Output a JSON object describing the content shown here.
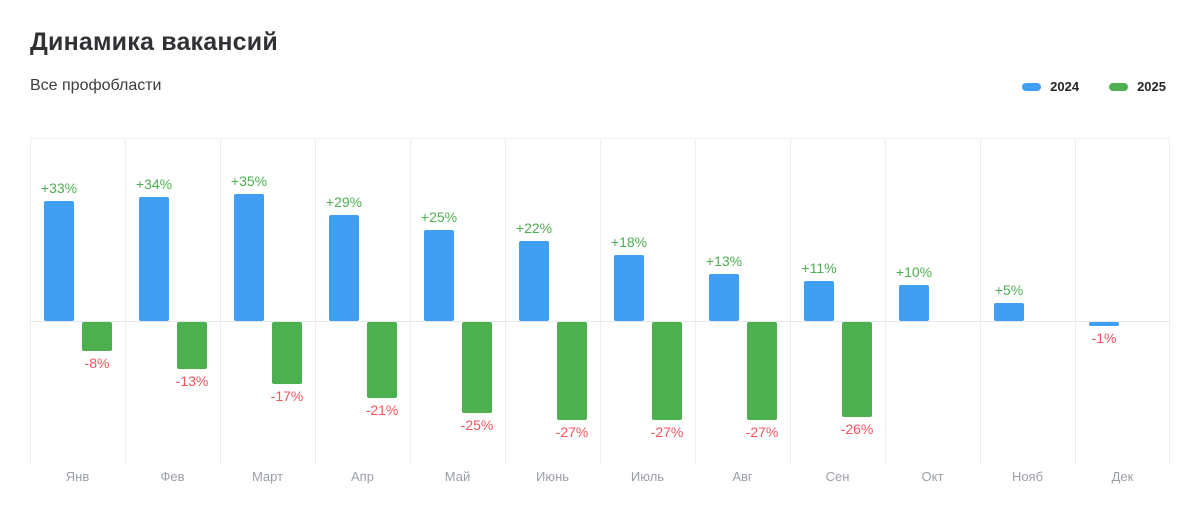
{
  "header": {
    "title": "Динамика вакансий",
    "subtitle": "Все профобласти"
  },
  "legend": {
    "items": [
      {
        "label": "2024",
        "color": "#409ff2"
      },
      {
        "label": "2025",
        "color": "#4caf50"
      }
    ]
  },
  "chart_data": {
    "type": "bar",
    "title": "Динамика вакансий",
    "subtitle": "Все профобласти",
    "categories": [
      "Янв",
      "Фев",
      "Март",
      "Апр",
      "Май",
      "Июнь",
      "Июль",
      "Авг",
      "Сен",
      "Окт",
      "Нояб",
      "Дек"
    ],
    "series": [
      {
        "name": "2024",
        "color": "#409ff2",
        "values": [
          33,
          34,
          35,
          29,
          25,
          22,
          18,
          13,
          11,
          10,
          5,
          -1
        ]
      },
      {
        "name": "2025",
        "color": "#4caf50",
        "values": [
          -8,
          -13,
          -17,
          -21,
          -25,
          -27,
          -27,
          -27,
          -26,
          null,
          null,
          null
        ]
      }
    ],
    "value_suffix": "%",
    "data_label_positive_color": "#4caf50",
    "data_label_negative_color": "#f4545e",
    "ylim": [
      -39,
      50
    ],
    "grid": "vertical-only",
    "legend_position": "top-right",
    "axis_label_color": "#9a9fa6",
    "gridline_color": "#ecedef"
  }
}
